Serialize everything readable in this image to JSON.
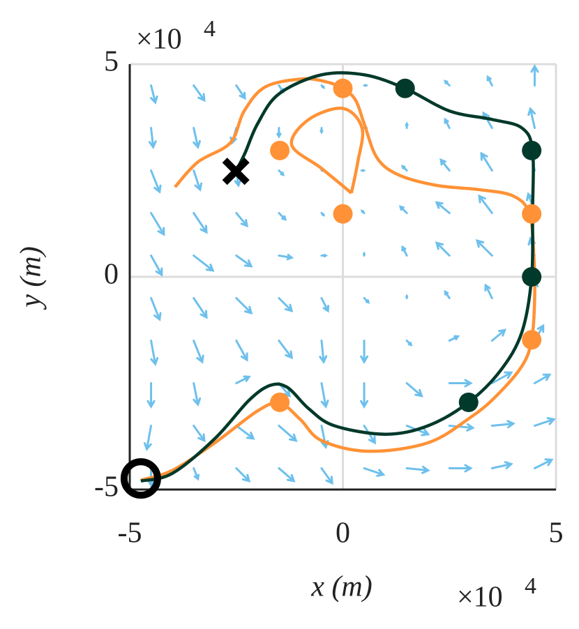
{
  "chart_data": {
    "type": "line",
    "xlabel": "x (m)",
    "ylabel": "y (m)",
    "x_multiplier": "×10",
    "x_exponent": "4",
    "y_multiplier": "×10",
    "y_exponent": "4",
    "xlim": [
      -5,
      5
    ],
    "ylim": [
      -5,
      5
    ],
    "xticks": [
      -5,
      0,
      5
    ],
    "yticks": [
      -5,
      0,
      5
    ],
    "grid": true,
    "series": [
      {
        "color": "#ff9236",
        "x": [
          -3.94,
          -3.4,
          -2.64,
          -2.32,
          -1.83,
          -1.0,
          -0.45,
          0.0,
          0.3,
          0.5,
          0.8,
          1.3,
          2.2,
          3.2,
          4.0,
          4.38,
          4.48,
          4.5,
          4.43,
          4.2,
          3.6,
          3.0,
          2.0,
          0.6,
          -0.5,
          -1.0,
          -1.48,
          -2.0,
          -3.0,
          -4.0,
          -4.74,
          null,
          0.2,
          -0.5,
          -1.2,
          -0.8,
          0.0,
          0.45,
          0.35,
          0.2
        ],
        "y": [
          2.11,
          2.7,
          3.15,
          3.89,
          4.46,
          4.65,
          4.6,
          4.43,
          4.15,
          3.6,
          2.8,
          2.4,
          2.15,
          2.05,
          1.9,
          1.48,
          0.5,
          -0.5,
          -1.48,
          -2.1,
          -2.8,
          -3.3,
          -3.9,
          -4.1,
          -3.85,
          -3.35,
          -2.97,
          -3.15,
          -3.9,
          -4.55,
          -4.78,
          null,
          1.97,
          2.55,
          3.1,
          3.7,
          3.96,
          3.5,
          2.7,
          1.97
        ]
      },
      {
        "color": "#01392a",
        "x": [
          -4.74,
          -4.0,
          -3.0,
          -2.2,
          -1.7,
          -1.3,
          -0.8,
          -0.2,
          1.0,
          2.0,
          2.95,
          3.7,
          4.2,
          4.43,
          4.45,
          4.45,
          4.2,
          3.5,
          2.5,
          1.46,
          0.5,
          -0.5,
          -1.5,
          -2.0,
          -2.3,
          -2.51
        ],
        "y": [
          -4.8,
          -4.62,
          -3.8,
          -2.9,
          -2.55,
          -2.6,
          -3.1,
          -3.5,
          -3.7,
          -3.5,
          -2.95,
          -2.2,
          -1.3,
          0.0,
          1.5,
          2.97,
          3.5,
          3.7,
          3.9,
          4.43,
          4.75,
          4.75,
          4.3,
          3.6,
          2.9,
          2.48
        ]
      }
    ],
    "points": [
      {
        "color": "#ff9236",
        "x": [
          0.0,
          -1.48,
          0.0,
          4.43,
          4.43,
          -1.48
        ],
        "y": [
          4.43,
          2.97,
          1.48,
          1.48,
          -1.48,
          -2.95
        ]
      },
      {
        "color": "#01392a",
        "x": [
          1.46,
          4.43,
          4.43,
          2.95
        ],
        "y": [
          4.43,
          2.97,
          0.0,
          -2.95
        ]
      }
    ],
    "start": {
      "x": -4.74,
      "y": -4.74
    },
    "end": {
      "x": -2.51,
      "y": 2.48
    },
    "quiver": {
      "color": "#6ec0ec",
      "x": [
        -4.5,
        -3.5,
        -2.5,
        -1.5,
        -0.5,
        0.5,
        1.5,
        2.5,
        3.5,
        4.5
      ],
      "y": [
        4.5,
        3.5,
        2.5,
        1.5,
        0.5,
        -0.5,
        -1.5,
        -2.5,
        -3.5,
        -4.5
      ],
      "u": [
        [
          0.1,
          0.25,
          0.2,
          0.1,
          0.05,
          0.05,
          0.1,
          -0.1,
          -0.1,
          0.0
        ],
        [
          0.05,
          0.1,
          -0.1,
          0.0,
          0.0,
          0.05,
          0.0,
          -0.1,
          -0.2,
          -0.1
        ],
        [
          0.2,
          0.15,
          0.05,
          0.1,
          0.05,
          -0.05,
          -0.1,
          -0.2,
          -0.25,
          -0.1
        ],
        [
          0.3,
          0.3,
          0.25,
          0.15,
          0.05,
          -0.05,
          -0.15,
          -0.3,
          -0.3,
          -0.15
        ],
        [
          0.25,
          0.45,
          0.35,
          0.3,
          0.1,
          0.0,
          -0.1,
          -0.3,
          -0.35,
          -0.1
        ],
        [
          0.2,
          0.3,
          0.35,
          0.3,
          0.15,
          0.1,
          0.0,
          -0.1,
          -0.15,
          0.0
        ],
        [
          0.1,
          0.2,
          0.25,
          0.3,
          0.05,
          0.0,
          0.1,
          0.2,
          0.3,
          0.2
        ],
        [
          0.0,
          0.1,
          0.3,
          0.25,
          0.1,
          0.0,
          0.35,
          0.5,
          0.45,
          0.35
        ],
        [
          -0.1,
          0.25,
          0.4,
          0.4,
          0.1,
          0.25,
          0.5,
          0.55,
          0.5,
          0.45
        ],
        [
          0.0,
          0.1,
          0.3,
          0.35,
          0.25,
          0.45,
          0.5,
          0.5,
          0.45,
          0.4
        ]
      ],
      "v": [
        [
          -0.4,
          -0.35,
          -0.3,
          -0.15,
          -0.05,
          0.0,
          -0.1,
          0.1,
          0.2,
          0.45
        ],
        [
          -0.45,
          -0.45,
          -0.35,
          -0.2,
          -0.1,
          0.0,
          0.1,
          0.2,
          0.35,
          0.45
        ],
        [
          -0.5,
          -0.45,
          -0.35,
          -0.1,
          0.0,
          0.0,
          0.1,
          0.25,
          0.4,
          0.45
        ],
        [
          -0.5,
          -0.45,
          -0.3,
          -0.15,
          -0.05,
          0.05,
          0.15,
          0.25,
          0.4,
          0.45
        ],
        [
          -0.45,
          -0.35,
          -0.25,
          -0.05,
          0.0,
          0.05,
          0.2,
          0.3,
          0.35,
          0.4
        ],
        [
          -0.5,
          -0.45,
          -0.35,
          -0.3,
          -0.3,
          -0.1,
          0.05,
          0.15,
          0.3,
          0.4
        ],
        [
          -0.55,
          -0.5,
          -0.45,
          -0.4,
          -0.5,
          -0.5,
          -0.1,
          0.1,
          0.25,
          0.35
        ],
        [
          -0.55,
          -0.5,
          0.15,
          -0.3,
          -0.55,
          -0.55,
          -0.3,
          0.0,
          0.25,
          0.2
        ],
        [
          -0.55,
          -0.35,
          -0.3,
          -0.35,
          -0.5,
          -0.4,
          -0.2,
          -0.05,
          0.05,
          0.15
        ],
        [
          -0.4,
          -0.25,
          -0.3,
          -0.3,
          -0.35,
          -0.15,
          -0.05,
          0.0,
          0.1,
          0.2
        ]
      ]
    }
  }
}
